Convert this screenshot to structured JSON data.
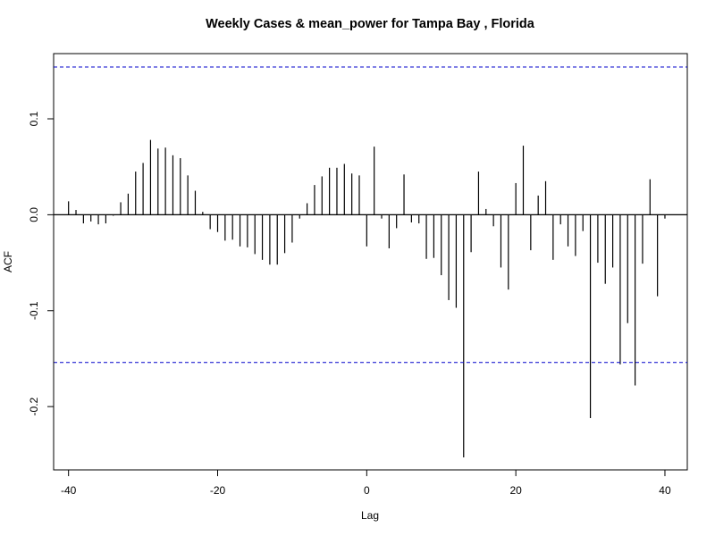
{
  "chart_data": {
    "type": "bar",
    "title": "Weekly Cases & mean_power for Tampa Bay , Florida",
    "xlabel": "Lag",
    "ylabel": "ACF",
    "xlim": [
      -42,
      43
    ],
    "ylim": [
      -0.266,
      0.168
    ],
    "x_ticks": [
      -40,
      -20,
      0,
      20,
      40
    ],
    "x_tick_labels": [
      "-40",
      "-20",
      "0",
      "20",
      "40"
    ],
    "y_ticks": [
      -0.2,
      -0.1,
      0.0,
      0.1
    ],
    "y_tick_labels": [
      "-0.2",
      "-0.1",
      "0.0",
      "0.1"
    ],
    "confidence_bounds": [
      0.154,
      -0.154
    ],
    "colors": {
      "bars": "#000000",
      "confidence": "#0000cc",
      "zero_line": "#000000",
      "frame": "#000000"
    },
    "x": [
      -40,
      -39,
      -38,
      -37,
      -36,
      -35,
      -34,
      -33,
      -32,
      -31,
      -30,
      -29,
      -28,
      -27,
      -26,
      -25,
      -24,
      -23,
      -22,
      -21,
      -20,
      -19,
      -18,
      -17,
      -16,
      -15,
      -14,
      -13,
      -12,
      -11,
      -10,
      -9,
      -8,
      -7,
      -6,
      -5,
      -4,
      -3,
      -2,
      -1,
      0,
      1,
      2,
      3,
      4,
      5,
      6,
      7,
      8,
      9,
      10,
      11,
      12,
      13,
      14,
      15,
      16,
      17,
      18,
      19,
      20,
      21,
      22,
      23,
      24,
      25,
      26,
      27,
      28,
      29,
      30,
      31,
      32,
      33,
      34,
      35,
      36,
      37,
      38,
      39,
      40
    ],
    "values": [
      0.014,
      0.005,
      -0.009,
      -0.007,
      -0.01,
      -0.009,
      -0.001,
      0.013,
      0.022,
      0.045,
      0.054,
      0.078,
      0.069,
      0.07,
      0.062,
      0.059,
      0.041,
      0.025,
      0.003,
      -0.015,
      -0.018,
      -0.027,
      -0.026,
      -0.033,
      -0.034,
      -0.041,
      -0.047,
      -0.052,
      -0.052,
      -0.04,
      -0.029,
      -0.004,
      0.012,
      0.031,
      0.04,
      0.049,
      0.049,
      0.053,
      0.043,
      0.041,
      -0.033,
      0.071,
      -0.004,
      -0.035,
      -0.014,
      0.042,
      -0.008,
      -0.009,
      -0.046,
      -0.045,
      -0.063,
      -0.089,
      -0.097,
      -0.253,
      -0.039,
      0.045,
      0.006,
      -0.012,
      -0.055,
      -0.078,
      0.033,
      0.072,
      -0.037,
      0.02,
      0.035,
      -0.047,
      -0.01,
      -0.033,
      -0.043,
      -0.017,
      -0.212,
      -0.05,
      -0.072,
      -0.055,
      -0.156,
      -0.113,
      -0.178,
      -0.051,
      0.037,
      -0.085,
      -0.004
    ]
  }
}
